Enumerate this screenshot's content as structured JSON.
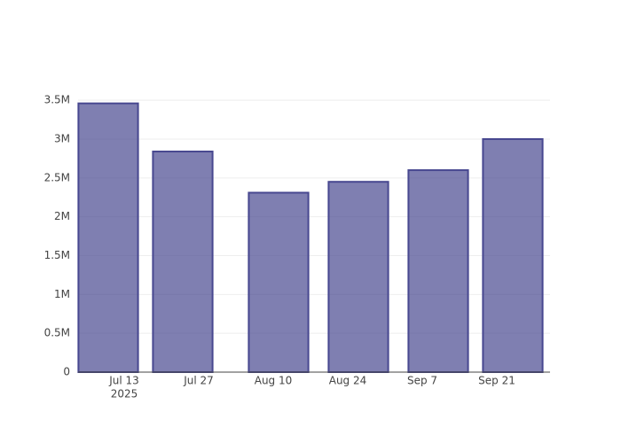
{
  "chart_data": {
    "type": "bar",
    "x": [
      "2025-07-10",
      "2025-07-24",
      "2025-08-11",
      "2025-08-26",
      "2025-09-10",
      "2025-09-24"
    ],
    "values": [
      3460000,
      2840000,
      2310000,
      2450000,
      2600000,
      3000000
    ],
    "color": "#484890",
    "xlim": [
      "2025-07-04T08:00",
      "2025-10-01T00:00"
    ],
    "xticks": [
      {
        "value": "2025-07-13",
        "label": "Jul 13",
        "sublabel": "2025"
      },
      {
        "value": "2025-07-27",
        "label": "Jul 27"
      },
      {
        "value": "2025-08-10",
        "label": "Aug 10"
      },
      {
        "value": "2025-08-24",
        "label": "Aug 24"
      },
      {
        "value": "2025-09-07",
        "label": "Sep 7"
      },
      {
        "value": "2025-09-21",
        "label": "Sep 21"
      }
    ],
    "ylim": [
      0,
      3650000
    ],
    "yticks": [
      0,
      {
        "value": 500000,
        "label": "0.5M"
      },
      {
        "value": 1000000,
        "label": "1M"
      },
      {
        "value": 1500000,
        "label": "1.5M"
      },
      {
        "value": 2000000,
        "label": "2M"
      },
      {
        "value": 2500000,
        "label": "2.5M"
      },
      {
        "value": 3000000,
        "label": "3M"
      },
      {
        "value": 3500000,
        "label": "3.5M"
      }
    ],
    "grid": true
  }
}
